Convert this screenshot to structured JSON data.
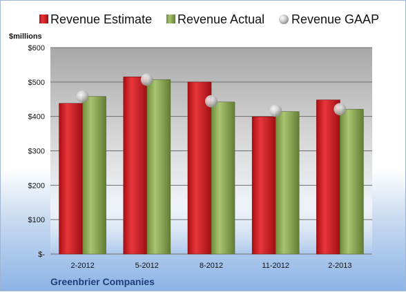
{
  "chart_data": {
    "type": "bar",
    "title": "Greenbrier Companies",
    "ylabel": "$millions",
    "xlabel": "",
    "categories": [
      "2-2012",
      "5-2012",
      "8-2012",
      "11-2012",
      "2-2013"
    ],
    "ylim": [
      0,
      600
    ],
    "yticks": [
      0,
      100,
      200,
      300,
      400,
      500,
      600
    ],
    "ytick_labels": [
      "$-",
      "$100",
      "$200",
      "$300",
      "$400",
      "$500",
      "$600"
    ],
    "grid": true,
    "legend": "top",
    "series": [
      {
        "name": "Revenue Estimate",
        "kind": "bar",
        "color": "#c8161d",
        "values": [
          438,
          515,
          500,
          399,
          448
        ]
      },
      {
        "name": "Revenue Actual",
        "kind": "bar",
        "color": "#8fae56",
        "values": [
          458,
          507,
          442,
          414,
          421
        ]
      },
      {
        "name": "Revenue GAAP",
        "kind": "marker",
        "color": "#bfbfbf",
        "values": [
          458,
          507,
          444,
          417,
          421
        ]
      }
    ]
  }
}
